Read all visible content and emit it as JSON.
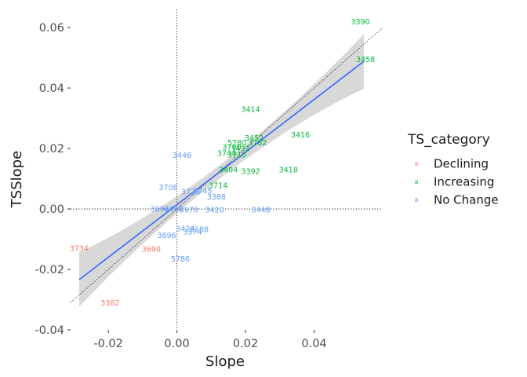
{
  "chart_data": {
    "type": "scatter",
    "xlabel": "Slope",
    "ylabel": "TSSlope",
    "xlim": [
      -0.031,
      0.06
    ],
    "ylim": [
      -0.04,
      0.066
    ],
    "x_ticks": [
      -0.02,
      0.0,
      0.02,
      0.04
    ],
    "x_tick_labels": [
      "-0.02",
      "0.00",
      "0.02",
      "0.04"
    ],
    "y_ticks": [
      -0.04,
      -0.02,
      0.0,
      0.02,
      0.04,
      0.06
    ],
    "y_tick_labels": [
      "-0.04",
      "-0.02",
      "0.00",
      "0.02",
      "0.04",
      "0.06"
    ],
    "grid": false,
    "reference_lines": {
      "vertical_x": 0,
      "horizontal_y": 0,
      "identity_line": true
    },
    "fit_line": {
      "method": "lm",
      "color": "#3366FF",
      "x_range": [
        -0.0285,
        0.0545
      ],
      "intercept": 0.0014,
      "slope": 0.87,
      "ribbon_color": "#BEBEBE"
    },
    "legend": {
      "title": "TS_category",
      "position": "right",
      "entries": [
        {
          "label": "Declining",
          "color": "#F8766D"
        },
        {
          "label": "Increasing",
          "color": "#00BA38"
        },
        {
          "label": "No Change",
          "color": "#619CFF"
        }
      ]
    },
    "series": [
      {
        "name": "Declining",
        "color": "#F8766D",
        "points": [
          {
            "label": "3734",
            "x": -0.0285,
            "y": -0.013
          },
          {
            "label": "3690",
            "x": -0.0075,
            "y": -0.0133
          },
          {
            "label": "3382",
            "x": -0.0195,
            "y": -0.031
          }
        ]
      },
      {
        "name": "Increasing",
        "color": "#00BA38",
        "points": [
          {
            "label": "3390",
            "x": 0.0535,
            "y": 0.062
          },
          {
            "label": "3458",
            "x": 0.055,
            "y": 0.0495
          },
          {
            "label": "3414",
            "x": 0.0215,
            "y": 0.033
          },
          {
            "label": "3416",
            "x": 0.036,
            "y": 0.0245
          },
          {
            "label": "3452",
            "x": 0.0225,
            "y": 0.0235
          },
          {
            "label": "3782",
            "x": 0.0235,
            "y": 0.022
          },
          {
            "label": "5780",
            "x": 0.0175,
            "y": 0.022
          },
          {
            "label": "3700",
            "x": 0.016,
            "y": 0.0205
          },
          {
            "label": "3432",
            "x": 0.0185,
            "y": 0.02
          },
          {
            "label": "3744",
            "x": 0.0145,
            "y": 0.0185
          },
          {
            "label": "3710",
            "x": 0.0175,
            "y": 0.018
          },
          {
            "label": "3418",
            "x": 0.0325,
            "y": 0.013
          },
          {
            "label": "3392",
            "x": 0.0215,
            "y": 0.0125
          },
          {
            "label": "3404",
            "x": 0.015,
            "y": 0.013
          },
          {
            "label": "3714",
            "x": 0.012,
            "y": 0.0078
          }
        ]
      },
      {
        "name": "No Change",
        "color": "#619CFF",
        "points": [
          {
            "label": "3446",
            "x": 0.0015,
            "y": 0.0178
          },
          {
            "label": "3708",
            "x": -0.0025,
            "y": 0.0072
          },
          {
            "label": "3728",
            "x": 0.004,
            "y": 0.0057
          },
          {
            "label": "3745",
            "x": 0.0075,
            "y": 0.006
          },
          {
            "label": "3388",
            "x": 0.0115,
            "y": 0.004
          },
          {
            "label": "3694",
            "x": -0.005,
            "y": 0.0
          },
          {
            "label": "3480",
            "x": -0.001,
            "y": 0.0
          },
          {
            "label": "3970",
            "x": 0.0035,
            "y": -0.0002
          },
          {
            "label": "3420",
            "x": 0.011,
            "y": -0.0002
          },
          {
            "label": "3448",
            "x": 0.0245,
            "y": -0.0002
          },
          {
            "label": "3424",
            "x": 0.0025,
            "y": -0.0065
          },
          {
            "label": "3188",
            "x": 0.0065,
            "y": -0.0068
          },
          {
            "label": "3374",
            "x": 0.0045,
            "y": -0.0075
          },
          {
            "label": "3696",
            "x": -0.003,
            "y": -0.0087
          },
          {
            "label": "5786",
            "x": 0.001,
            "y": -0.0165
          }
        ]
      }
    ]
  }
}
